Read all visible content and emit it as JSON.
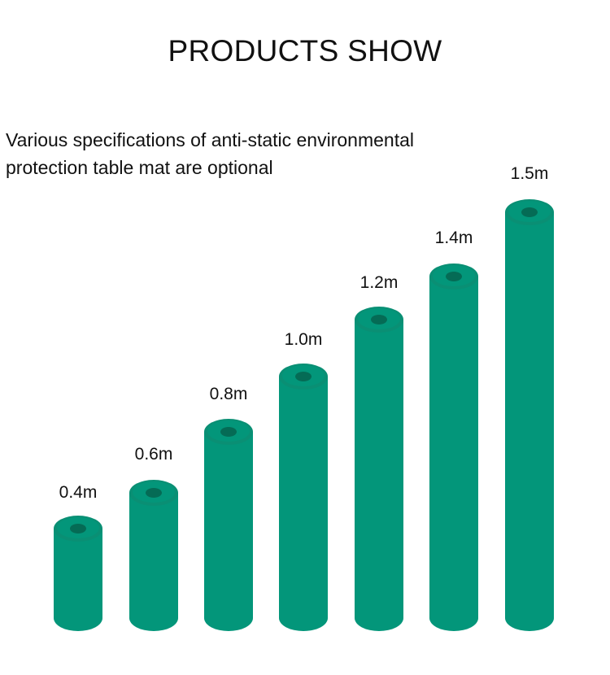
{
  "title": "PRODUCTS SHOW",
  "description": "Various specifications of anti-static environmental protection table mat are optional",
  "rolls": [
    {
      "label": "0.4m"
    },
    {
      "label": "0.6m"
    },
    {
      "label": "0.8m"
    },
    {
      "label": "1.0m"
    },
    {
      "label": "1.2m"
    },
    {
      "label": "1.4m"
    },
    {
      "label": "1.5m"
    }
  ],
  "colors": {
    "roll_body": "#03967a",
    "roll_top_edge": "#0a8f74",
    "roll_hole": "#056b55"
  }
}
